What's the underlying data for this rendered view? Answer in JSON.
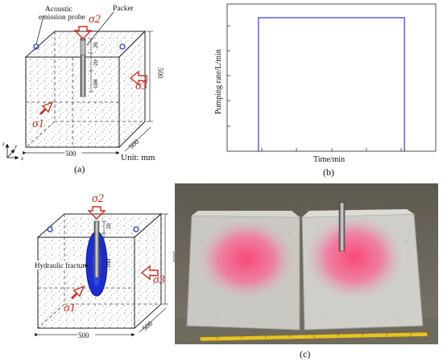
{
  "panel_a": {
    "caption": "(a)",
    "acoustic_label_line1": "Acoustic",
    "acoustic_label_line2": "emission probe",
    "packer_label": "Packer",
    "sigma1": "σ1",
    "sigma2": "σ2",
    "sigma3": "σ3",
    "dim_bottom": "500",
    "dim_right": "500",
    "dim_depth": "500",
    "dim_20_top": "20",
    "dim_20_mid": "20",
    "dim_100": "100",
    "units": "Unit:  mm",
    "axis_z": "z",
    "axis_y": "y",
    "axis_x": "x"
  },
  "panel_b": {
    "caption": "(b)",
    "ylabel": "Pumping rate/L/min",
    "xlabel": "Time/min"
  },
  "panel_c": {
    "caption": "(c)",
    "hydraulic_label": "Hydraulic fracture",
    "sigma1": "σ1",
    "sigma2": "σ2",
    "sigma3": "σ3",
    "dim_bottom": "500",
    "dim_right": "500",
    "dim_depth": "500",
    "dim_20": "20",
    "dim_100": "100"
  },
  "chart_data": {
    "type": "line",
    "title": "",
    "xlabel": "Time/min",
    "ylabel": "Pumping rate/L/min",
    "x_ticks_shown": false,
    "y_ticks_shown": false,
    "series": [
      {
        "values_description_shape": "rectangular pulse",
        "x": [
          0.15,
          0.15,
          0.85,
          0.85
        ],
        "y": [
          0,
          1,
          1,
          0
        ]
      }
    ],
    "line_color": "#3a3ad6"
  }
}
